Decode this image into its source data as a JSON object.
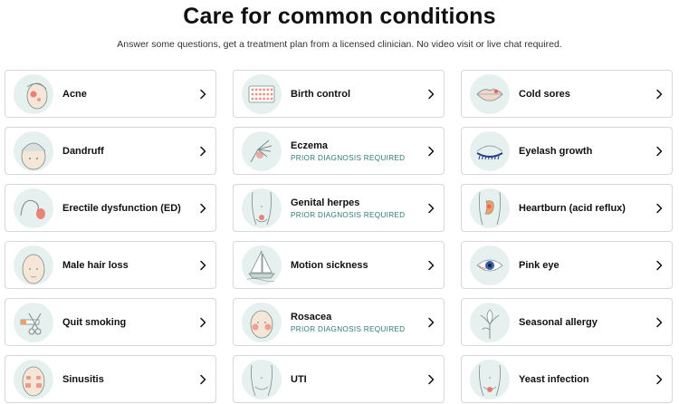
{
  "header": {
    "title": "Care for common conditions",
    "subtitle": "Answer some questions, get a treatment plan from a licensed clinician. No video visit or live chat required."
  },
  "colors": {
    "icon_bg": "#e6f1ef",
    "accent_red": "#e8685a",
    "sublabel": "#2f7b74",
    "border": "#d5d9d9"
  },
  "conditions": [
    {
      "label": "Acne",
      "sublabel": "",
      "icon": "face-acne-icon"
    },
    {
      "label": "Birth control",
      "sublabel": "",
      "icon": "pill-pack-icon"
    },
    {
      "label": "Cold sores",
      "sublabel": "",
      "icon": "lips-icon"
    },
    {
      "label": "Dandruff",
      "sublabel": "",
      "icon": "head-dandruff-icon"
    },
    {
      "label": "Eczema",
      "sublabel": "PRIOR DIAGNOSIS REQUIRED",
      "icon": "hand-rash-icon"
    },
    {
      "label": "Eyelash growth",
      "sublabel": "",
      "icon": "eyelash-icon"
    },
    {
      "label": "Erectile dysfunction (ED)",
      "sublabel": "",
      "icon": "ed-icon"
    },
    {
      "label": "Genital herpes",
      "sublabel": "PRIOR DIAGNOSIS REQUIRED",
      "icon": "torso-icon"
    },
    {
      "label": "Heartburn (acid reflux)",
      "sublabel": "",
      "icon": "stomach-icon"
    },
    {
      "label": "Male hair loss",
      "sublabel": "",
      "icon": "bald-head-icon"
    },
    {
      "label": "Motion sickness",
      "sublabel": "",
      "icon": "sailboat-icon"
    },
    {
      "label": "Pink eye",
      "sublabel": "",
      "icon": "eye-icon"
    },
    {
      "label": "Quit smoking",
      "sublabel": "",
      "icon": "cut-cigarette-icon"
    },
    {
      "label": "Rosacea",
      "sublabel": "PRIOR DIAGNOSIS REQUIRED",
      "icon": "face-rosacea-icon"
    },
    {
      "label": "Seasonal allergy",
      "sublabel": "",
      "icon": "flower-icon"
    },
    {
      "label": "Sinusitis",
      "sublabel": "",
      "icon": "face-sinus-icon"
    },
    {
      "label": "UTI",
      "sublabel": "",
      "icon": "pelvis-icon"
    },
    {
      "label": "Yeast infection",
      "sublabel": "",
      "icon": "pelvis-red-icon"
    }
  ]
}
